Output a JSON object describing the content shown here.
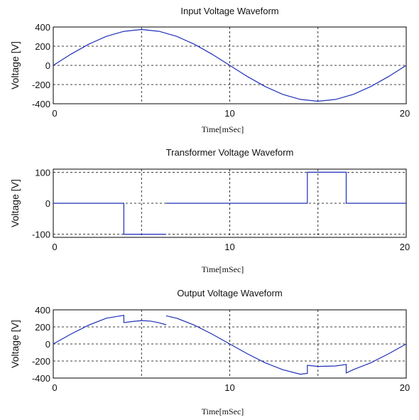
{
  "chart_data": [
    {
      "type": "line",
      "title": "Input Voltage Waveform",
      "xlabel": "Time[mSec]",
      "ylabel": "Voltage [V]",
      "xlim": [
        0,
        20
      ],
      "ylim": [
        -400,
        400
      ],
      "xticks": [
        "0",
        "10",
        "20"
      ],
      "yticks": [
        "400",
        "200",
        "0",
        "-200",
        "-400"
      ],
      "grid": true,
      "line_color": "#1f2fb8",
      "series": [
        {
          "x": [
            0,
            1,
            2,
            3,
            4,
            5,
            6,
            7,
            8,
            9,
            10,
            11,
            12,
            13,
            14,
            15,
            16,
            17,
            18,
            19,
            20
          ],
          "values": [
            0,
            116,
            220,
            302,
            355,
            374,
            355,
            302,
            220,
            116,
            0,
            -116,
            -220,
            -302,
            -355,
            -374,
            -355,
            -302,
            -220,
            -116,
            0
          ]
        }
      ]
    },
    {
      "type": "line",
      "title": "Transformer Voltage Waveform",
      "xlabel": "Time[mSec]",
      "ylabel": "Voltage [V]",
      "xlim": [
        0,
        20
      ],
      "ylim": [
        -110,
        110
      ],
      "xticks": [
        "0",
        "10",
        "20"
      ],
      "yticks": [
        "100",
        "0",
        "-100"
      ],
      "grid": true,
      "line_color": "#1f2fb8",
      "series": [
        {
          "segments": [
            {
              "x": [
                0,
                4,
                4,
                6.4
              ],
              "values": [
                0,
                0,
                -100,
                -100
              ]
            },
            {
              "x": [
                6.4,
                14.4,
                14.4,
                16.6,
                16.6,
                20
              ],
              "values": [
                0,
                0,
                100,
                100,
                0,
                0
              ]
            }
          ]
        }
      ]
    },
    {
      "type": "line",
      "title": "Output Voltage Waveform",
      "xlabel": "Time[mSec]",
      "ylabel": "Voltage [V]",
      "xlim": [
        0,
        20
      ],
      "ylim": [
        -400,
        400
      ],
      "xticks": [
        "0",
        "10",
        "20"
      ],
      "yticks": [
        "400",
        "200",
        "0",
        "-200",
        "-400"
      ],
      "grid": true,
      "line_color": "#1f2fb8",
      "series": [
        {
          "segments": [
            {
              "x": [
                0,
                1,
                2,
                3,
                4,
                4,
                4.5,
                5,
                5.5,
                6,
                6.4
              ],
              "values": [
                0,
                116,
                220,
                302,
                336,
                250,
                263,
                274,
                268,
                248,
                225
              ]
            },
            {
              "x": [
                6.4,
                7,
                8,
                9,
                10,
                11,
                12,
                13,
                14,
                14.4,
                14.4,
                15,
                16,
                16.6,
                16.6,
                17,
                18,
                19,
                20
              ],
              "values": [
                330,
                302,
                220,
                116,
                0,
                -116,
                -220,
                -302,
                -355,
                -345,
                -250,
                -263,
                -258,
                -240,
                -340,
                -302,
                -220,
                -116,
                0
              ]
            }
          ]
        }
      ]
    }
  ]
}
